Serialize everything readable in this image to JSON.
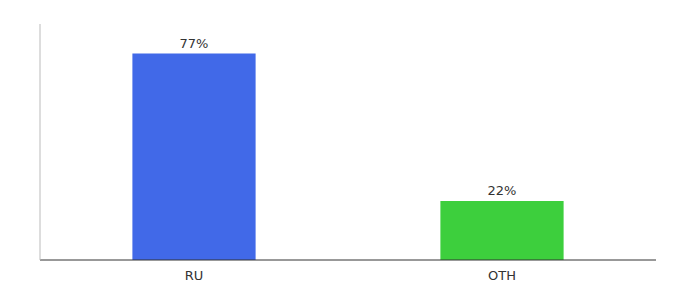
{
  "chart_data": {
    "type": "bar",
    "categories": [
      "RU",
      "OTH"
    ],
    "values": [
      77,
      22
    ],
    "value_labels": [
      "77%",
      "22%"
    ],
    "colors": [
      "#4169e8",
      "#3dcf3d"
    ],
    "ylim": [
      0,
      88
    ],
    "yticks": [],
    "grid": false,
    "data_labels": true,
    "tick_labels": "x"
  }
}
